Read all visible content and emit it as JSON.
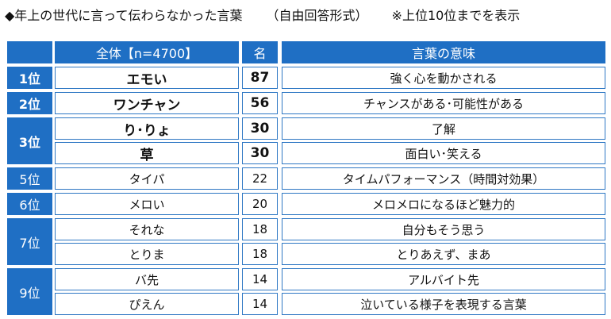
{
  "title": {
    "main": "◆年上の世代に言って伝わらなかった言葉",
    "method": "（自由回答形式）",
    "note": "※上位10位までを表示"
  },
  "header": {
    "col_word": "全体【n=4700】",
    "col_count": "名",
    "col_meaning": "言葉の意味"
  },
  "ranks": [
    "1位",
    "2位",
    "3位",
    "5位",
    "6位",
    "7位",
    "9位"
  ],
  "rows": [
    {
      "word": "エモい",
      "count": "87",
      "meaning": "強く心を動かされる"
    },
    {
      "word": "ワンチャン",
      "count": "56",
      "meaning": "チャンスがある･可能性がある"
    },
    {
      "word": "り･りょ",
      "count": "30",
      "meaning": "了解"
    },
    {
      "word": "草",
      "count": "30",
      "meaning": "面白い･笑える"
    },
    {
      "word": "タイパ",
      "count": "22",
      "meaning": "タイムパフォーマンス（時間対効果）"
    },
    {
      "word": "メロい",
      "count": "20",
      "meaning": "メロメロになるほど魅力的"
    },
    {
      "word": "それな",
      "count": "18",
      "meaning": "自分もそう思う"
    },
    {
      "word": "とりま",
      "count": "18",
      "meaning": "とりあえず、まあ"
    },
    {
      "word": "バ先",
      "count": "14",
      "meaning": "アルバイト先"
    },
    {
      "word": "ぴえん",
      "count": "14",
      "meaning": "泣いている様子を表現する言葉"
    }
  ],
  "colors": {
    "header_blue": "#1f6fc4",
    "border_blue": "#2f78c4"
  }
}
